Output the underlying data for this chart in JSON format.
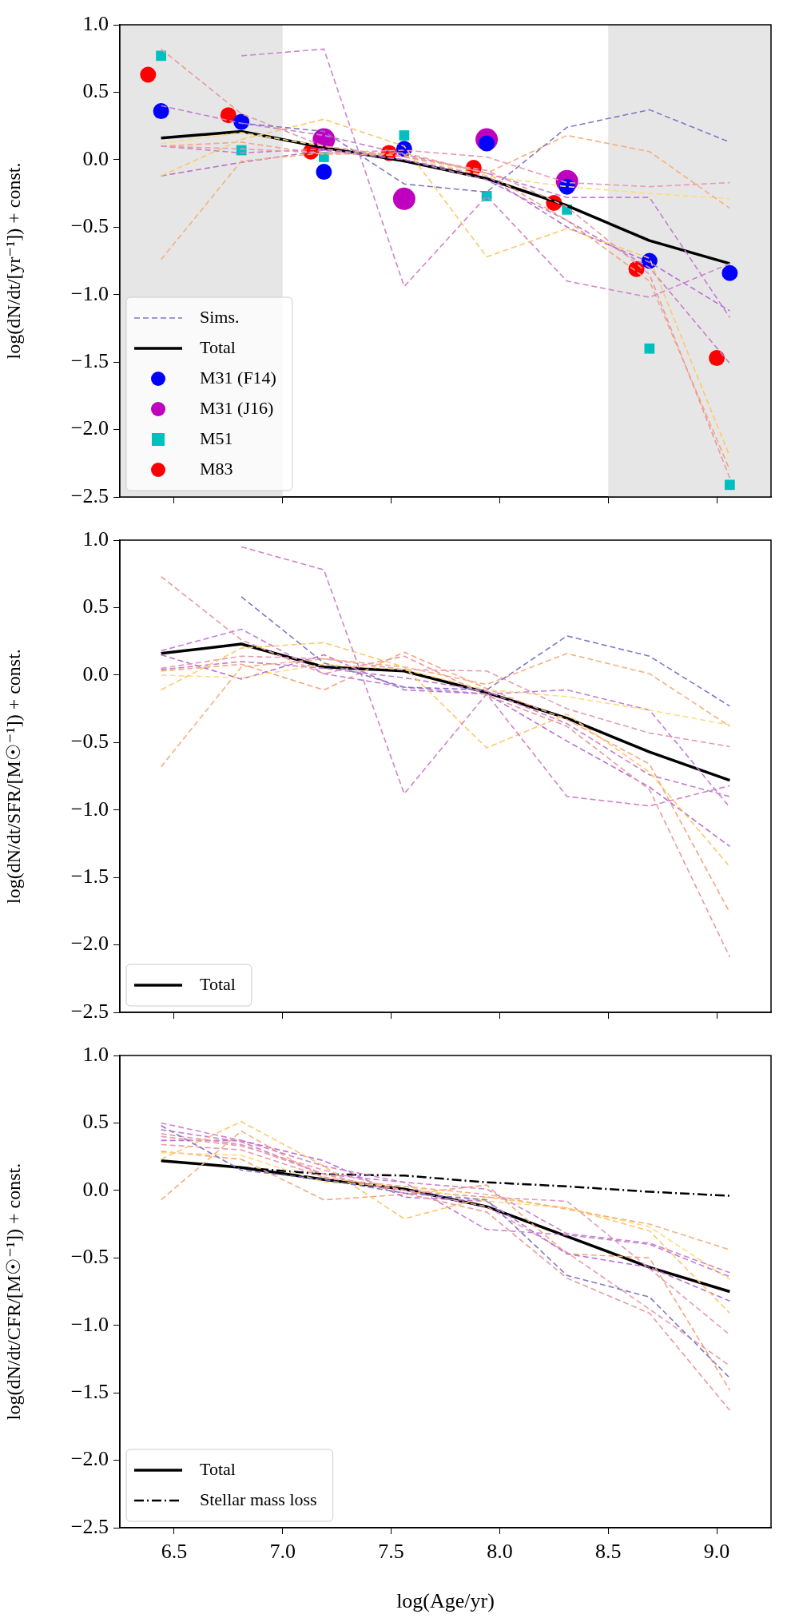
{
  "chart_data": [
    {
      "type": "line",
      "ylabel": "log(dN/dt/[yr⁻¹]) + const.",
      "legend": "bottom left",
      "tick_labels": "y",
      "x": [
        6.44,
        6.81,
        7.19,
        7.56,
        7.94,
        8.31,
        8.69,
        9.06
      ],
      "xlim": [
        6.25,
        9.25
      ],
      "xticks": [
        6.5,
        7,
        7.5,
        8,
        8.5,
        9
      ],
      "ylim": [
        -2.5,
        1.0
      ],
      "yticks": [
        {
          "value": -2.5,
          "label": "−2.5"
        },
        {
          "value": -2,
          "label": "−2.0"
        },
        {
          "value": -1.5,
          "label": "−1.5"
        },
        {
          "value": -1,
          "label": "−1.0"
        },
        {
          "value": -0.5,
          "label": "−0.5"
        },
        {
          "value": 0,
          "label": "0.0"
        },
        {
          "value": 0.5,
          "label": "0.5"
        },
        {
          "value": 1,
          "label": "1.0"
        }
      ],
      "bands": [
        {
          "axis": "x",
          "from": 6.25,
          "to": 7.0,
          "color": "#e6e6e6"
        },
        {
          "axis": "x",
          "from": 8.5,
          "to": 9.25,
          "color": "#e6e6e6"
        }
      ],
      "series": [
        {
          "type": "line",
          "name": "Sims.",
          "line_style": "dashed",
          "color": "#8077c8",
          "values": [
            null,
            0.27,
            0.21,
            -0.18,
            -0.24,
            0.24,
            0.37,
            0.13
          ]
        },
        {
          "type": "line",
          "line_style": "dashed",
          "color": "#d084c9",
          "values": [
            null,
            0.77,
            0.82,
            -0.94,
            -0.27,
            -0.9,
            -1.02,
            -0.77
          ]
        },
        {
          "type": "line",
          "line_style": "dashed",
          "color": "#e99a9e",
          "values": [
            0.82,
            0.34,
            0.1,
            0.02,
            -0.08,
            -0.35,
            -0.85,
            -2.36
          ]
        },
        {
          "type": "line",
          "line_style": "dashed",
          "color": "#f6b07e",
          "values": [
            -0.74,
            -0.01,
            0.05,
            0.03,
            -0.1,
            0.18,
            0.06,
            -0.36
          ]
        },
        {
          "type": "line",
          "line_style": "dashed",
          "color": "#fcc86a",
          "values": [
            -0.12,
            0.15,
            0.3,
            0.1,
            -0.72,
            -0.51,
            -0.73,
            -2.2
          ]
        },
        {
          "type": "line",
          "line_style": "dashed",
          "color": "#fbdc80",
          "values": [
            0.12,
            0.2,
            0.1,
            0.02,
            -0.12,
            -0.2,
            -0.25,
            -0.29
          ]
        },
        {
          "type": "line",
          "line_style": "dashed",
          "color": "#e59ab9",
          "values": [
            0.1,
            0.08,
            0.05,
            0.07,
            0.02,
            -0.17,
            -0.2,
            -0.17
          ]
        },
        {
          "type": "line",
          "line_style": "dashed",
          "color": "#c47ed6",
          "values": [
            0.4,
            0.27,
            0.18,
            0.04,
            -0.1,
            -0.28,
            -0.28,
            -1.17
          ]
        },
        {
          "type": "line",
          "line_style": "dashed",
          "color": "#b86fd1",
          "values": [
            -0.12,
            -0.02,
            0.07,
            0.0,
            -0.12,
            -0.5,
            -0.76,
            -1.12
          ]
        },
        {
          "type": "line",
          "line_style": "dashed",
          "color": "#c57fc6",
          "values": [
            0.1,
            0.05,
            0.08,
            0.0,
            -0.15,
            -0.45,
            -0.8,
            -1.51
          ]
        },
        {
          "type": "line",
          "line_style": "dashed",
          "color": "#f3a57e",
          "values": [
            0.1,
            0.13,
            0.04,
            0.05,
            -0.1,
            -0.45,
            -0.9,
            -2.3
          ]
        },
        {
          "type": "line",
          "name": "Total",
          "line_style": "solid",
          "color": "#000000",
          "values": [
            0.16,
            0.21,
            0.09,
            -0.01,
            -0.14,
            -0.34,
            -0.6,
            -0.77
          ]
        },
        {
          "type": "scatter",
          "name": "M31 (F14)",
          "marker": "circle",
          "color": "#0000ff",
          "values": [
            0.36,
            0.28,
            -0.09,
            0.08,
            0.12,
            -0.2,
            -0.75,
            -0.84
          ]
        },
        {
          "type": "scatter",
          "name": "M31 (J16)",
          "marker": "circle",
          "color": "#bf00bf",
          "values": [
            null,
            null,
            0.15,
            -0.29,
            0.15,
            -0.16,
            null,
            null
          ]
        },
        {
          "type": "scatter",
          "name": "M51",
          "marker": "square",
          "color": "#00bfbf",
          "values": [
            0.77,
            0.07,
            0.02,
            0.18,
            -0.27,
            -0.37,
            -1.4,
            -2.41
          ]
        },
        {
          "type": "scatter",
          "name": "M83",
          "marker": "circle",
          "color": "#ff0000",
          "x": [
            6.38,
            6.75,
            7.13,
            7.49,
            7.88,
            8.25,
            8.63,
            9.0
          ],
          "values": [
            0.63,
            0.33,
            0.06,
            0.05,
            -0.06,
            -0.32,
            -0.81,
            -1.47
          ]
        }
      ]
    },
    {
      "type": "line",
      "ylabel": "log(dN/dt/SFR/[M☉⁻¹]) + const.",
      "legend": "bottom left",
      "tick_labels": "y",
      "x": [
        6.44,
        6.81,
        7.19,
        7.56,
        7.94,
        8.31,
        8.69,
        9.06
      ],
      "xlim": [
        6.25,
        9.25
      ],
      "xticks": [
        6.5,
        7,
        7.5,
        8,
        8.5,
        9
      ],
      "ylim": [
        -2.5,
        1.0
      ],
      "yticks": [
        {
          "value": -2.5,
          "label": "−2.5"
        },
        {
          "value": -2,
          "label": "−2.0"
        },
        {
          "value": -1.5,
          "label": "−1.5"
        },
        {
          "value": -1,
          "label": "−1.0"
        },
        {
          "value": -0.5,
          "label": "−0.5"
        },
        {
          "value": 0,
          "label": "0.0"
        },
        {
          "value": 0.5,
          "label": "0.5"
        },
        {
          "value": 1,
          "label": "1.0"
        }
      ],
      "series": [
        {
          "type": "line",
          "line_style": "dashed",
          "color": "#8077c8",
          "values": [
            null,
            0.58,
            0.09,
            -0.09,
            -0.11,
            0.29,
            0.14,
            -0.23
          ]
        },
        {
          "type": "line",
          "line_style": "dashed",
          "color": "#d084c9",
          "values": [
            null,
            0.95,
            0.78,
            -0.88,
            -0.14,
            -0.9,
            -0.97,
            -0.82
          ]
        },
        {
          "type": "line",
          "line_style": "dashed",
          "color": "#e99a9e",
          "values": [
            0.73,
            0.26,
            0.01,
            0.14,
            -0.15,
            -0.38,
            -0.85,
            -2.09
          ]
        },
        {
          "type": "line",
          "line_style": "dashed",
          "color": "#f6b07e",
          "values": [
            -0.68,
            0.06,
            0.12,
            0.06,
            -0.07,
            0.16,
            0.01,
            -0.38
          ]
        },
        {
          "type": "line",
          "line_style": "dashed",
          "color": "#fcc86a",
          "values": [
            -0.11,
            0.2,
            0.24,
            0.06,
            -0.54,
            -0.29,
            -0.72,
            -1.42
          ]
        },
        {
          "type": "line",
          "line_style": "dashed",
          "color": "#fbdc80",
          "values": [
            0.0,
            -0.02,
            0.08,
            0.04,
            -0.11,
            -0.16,
            -0.26,
            -0.37
          ]
        },
        {
          "type": "line",
          "line_style": "dashed",
          "color": "#e59ab9",
          "values": [
            0.05,
            0.14,
            0.12,
            0.04,
            0.03,
            -0.25,
            -0.43,
            -0.53
          ]
        },
        {
          "type": "line",
          "line_style": "dashed",
          "color": "#c47ed6",
          "values": [
            0.18,
            0.34,
            0.01,
            -0.09,
            -0.14,
            -0.11,
            -0.26,
            -0.98
          ]
        },
        {
          "type": "line",
          "line_style": "dashed",
          "color": "#b86fd1",
          "values": [
            0.15,
            -0.03,
            0.15,
            -0.11,
            -0.14,
            -0.49,
            -0.83,
            -1.27
          ]
        },
        {
          "type": "line",
          "line_style": "dashed",
          "color": "#f3a57e",
          "values": [
            0.03,
            0.08,
            -0.11,
            0.17,
            -0.1,
            -0.33,
            -0.66,
            -1.76
          ]
        },
        {
          "type": "line",
          "line_style": "dashed",
          "color": "#c57fc6",
          "values": [
            0.04,
            0.1,
            0.05,
            -0.02,
            -0.12,
            -0.36,
            -0.74,
            -0.9
          ]
        },
        {
          "type": "line",
          "name": "Total",
          "line_style": "solid",
          "color": "#000000",
          "values": [
            0.16,
            0.23,
            0.06,
            0.03,
            -0.13,
            -0.32,
            -0.57,
            -0.78
          ]
        }
      ]
    },
    {
      "type": "line",
      "ylabel": "log(dN/dt/CFR/[M☉⁻¹]) + const.",
      "xlabel": "log(Age/yr)",
      "legend": "bottom left",
      "x": [
        6.44,
        6.81,
        7.19,
        7.56,
        7.94,
        8.31,
        8.69,
        9.06
      ],
      "xlim": [
        6.25,
        9.25
      ],
      "xticks": [
        6.5,
        {
          "value": 7,
          "label": "7.0"
        },
        7.5,
        {
          "value": 8,
          "label": "8.0"
        },
        8.5,
        {
          "value": 9,
          "label": "9.0"
        }
      ],
      "ylim": [
        -2.5,
        1.0
      ],
      "yticks": [
        {
          "value": -2.5,
          "label": "−2.5"
        },
        {
          "value": -2,
          "label": "−2.0"
        },
        {
          "value": -1.5,
          "label": "−1.5"
        },
        {
          "value": -1,
          "label": "−1.0"
        },
        {
          "value": -0.5,
          "label": "−0.5"
        },
        {
          "value": 0,
          "label": "0.0"
        },
        {
          "value": 0.5,
          "label": "0.5"
        },
        {
          "value": 1,
          "label": "1.0"
        }
      ],
      "series": [
        {
          "type": "line",
          "line_style": "dashed",
          "color": "#8077c8",
          "values": [
            0.48,
            0.15,
            0.08,
            -0.02,
            -0.07,
            -0.63,
            -0.79,
            -1.39
          ]
        },
        {
          "type": "line",
          "line_style": "dashed",
          "color": "#d084c9",
          "values": [
            0.5,
            0.37,
            0.18,
            0.06,
            0.01,
            -0.32,
            -0.39,
            -0.61
          ]
        },
        {
          "type": "line",
          "line_style": "dashed",
          "color": "#e99a9e",
          "values": [
            0.42,
            0.34,
            0.12,
            -0.02,
            -0.16,
            -0.65,
            -0.91,
            -1.63
          ]
        },
        {
          "type": "line",
          "line_style": "dashed",
          "color": "#f6b07e",
          "values": [
            -0.07,
            0.44,
            0.09,
            0.03,
            -0.03,
            -0.14,
            -0.25,
            -0.44
          ]
        },
        {
          "type": "line",
          "line_style": "dashed",
          "color": "#fcc86a",
          "values": [
            0.23,
            0.51,
            0.18,
            -0.21,
            -0.05,
            -0.13,
            -0.3,
            -0.91
          ]
        },
        {
          "type": "line",
          "line_style": "dashed",
          "color": "#fbdc80",
          "values": [
            0.28,
            0.26,
            0.06,
            0.03,
            -0.08,
            -0.13,
            -0.27,
            -0.66
          ]
        },
        {
          "type": "line",
          "line_style": "dashed",
          "color": "#e59ab9",
          "values": [
            0.4,
            0.33,
            0.15,
            0.0,
            -0.05,
            -0.08,
            -0.58,
            -1.07
          ]
        },
        {
          "type": "line",
          "line_style": "dashed",
          "color": "#c47ed6",
          "values": [
            0.45,
            0.36,
            0.12,
            0.06,
            -0.29,
            -0.33,
            -0.4,
            -0.64
          ]
        },
        {
          "type": "line",
          "line_style": "dashed",
          "color": "#b86fd1",
          "values": [
            0.37,
            0.37,
            0.22,
            -0.05,
            -0.08,
            -0.47,
            -0.57,
            -0.82
          ]
        },
        {
          "type": "line",
          "line_style": "dashed",
          "color": "#f3a57e",
          "values": [
            0.29,
            0.23,
            -0.07,
            -0.03,
            0.04,
            -0.47,
            -0.5,
            -1.48
          ]
        },
        {
          "type": "line",
          "line_style": "dashed",
          "color": "#e99aae",
          "values": [
            0.34,
            0.3,
            0.1,
            0.0,
            -0.12,
            -0.46,
            -0.88,
            -1.3
          ]
        },
        {
          "type": "line",
          "name": "Total",
          "line_style": "solid",
          "color": "#000000",
          "values": [
            0.22,
            0.17,
            0.08,
            0.01,
            -0.12,
            -0.34,
            -0.57,
            -0.75
          ]
        },
        {
          "type": "line",
          "name": "Stellar mass loss",
          "line_style": "dashdot",
          "color": "#000000",
          "values": [
            null,
            0.17,
            0.12,
            0.11,
            0.06,
            0.03,
            -0.01,
            -0.04
          ]
        }
      ]
    }
  ]
}
